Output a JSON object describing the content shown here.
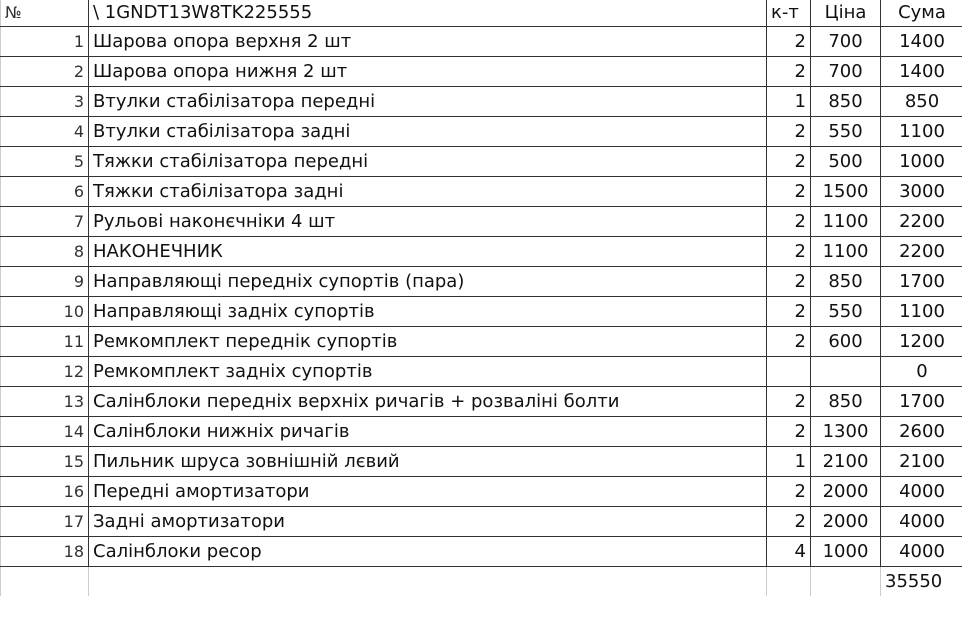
{
  "header": {
    "no": "№",
    "name": "\\ 1GNDT13W8TK225555",
    "qty": "к-т",
    "price": "Ціна",
    "sum": "Сума"
  },
  "rows": [
    {
      "no": "1",
      "name": "Шарова опора верхня 2 шт",
      "qty": "2",
      "price": "700",
      "sum": "1400"
    },
    {
      "no": "2",
      "name": "Шарова опора нижня 2 шт",
      "qty": "2",
      "price": "700",
      "sum": "1400"
    },
    {
      "no": "3",
      "name": "Втулки стабілізатора передні",
      "qty": "1",
      "price": "850",
      "sum": "850"
    },
    {
      "no": "4",
      "name": "Втулки стабілізатора задні",
      "qty": "2",
      "price": "550",
      "sum": "1100"
    },
    {
      "no": "5",
      "name": "Тяжки стабілізатора передні",
      "qty": "2",
      "price": "500",
      "sum": "1000"
    },
    {
      "no": "6",
      "name": "Тяжки стабілізатора задні",
      "qty": "2",
      "price": "1500",
      "sum": "3000"
    },
    {
      "no": "7",
      "name": "Рульові наконєчніки 4 шт",
      "qty": "2",
      "price": "1100",
      "sum": "2200"
    },
    {
      "no": "8",
      "name": "НАКОНЕЧНИК",
      "qty": "2",
      "price": "1100",
      "sum": "2200"
    },
    {
      "no": "9",
      "name": "Направляющі передніх супортів (пара)",
      "qty": "2",
      "price": "850",
      "sum": "1700"
    },
    {
      "no": "10",
      "name": "Направляющі задніх супортів",
      "qty": "2",
      "price": "550",
      "sum": "1100"
    },
    {
      "no": "11",
      "name": "Ремкомплект переднік супортів",
      "qty": "2",
      "price": "600",
      "sum": "1200"
    },
    {
      "no": "12",
      "name": "Ремкомплект задніх супортів",
      "qty": "",
      "price": "",
      "sum": "0"
    },
    {
      "no": "13",
      "name": "Салінблоки передніх верхніх ричагів + розваліні болти",
      "qty": "2",
      "price": "850",
      "sum": "1700"
    },
    {
      "no": "14",
      "name": "Салінблоки нижніх ричагів",
      "qty": "2",
      "price": "1300",
      "sum": "2600"
    },
    {
      "no": "15",
      "name": "Пильник шруса зовнішній лєвий",
      "qty": "1",
      "price": "2100",
      "sum": "2100"
    },
    {
      "no": "16",
      "name": "Передні амортизатори",
      "qty": "2",
      "price": "2000",
      "sum": "4000"
    },
    {
      "no": "17",
      "name": "Задні амортизатори",
      "qty": "2",
      "price": "2000",
      "sum": "4000"
    },
    {
      "no": "18",
      "name": "Салінблоки ресор",
      "qty": "4",
      "price": "1000",
      "sum": "4000"
    }
  ],
  "total": "35550"
}
